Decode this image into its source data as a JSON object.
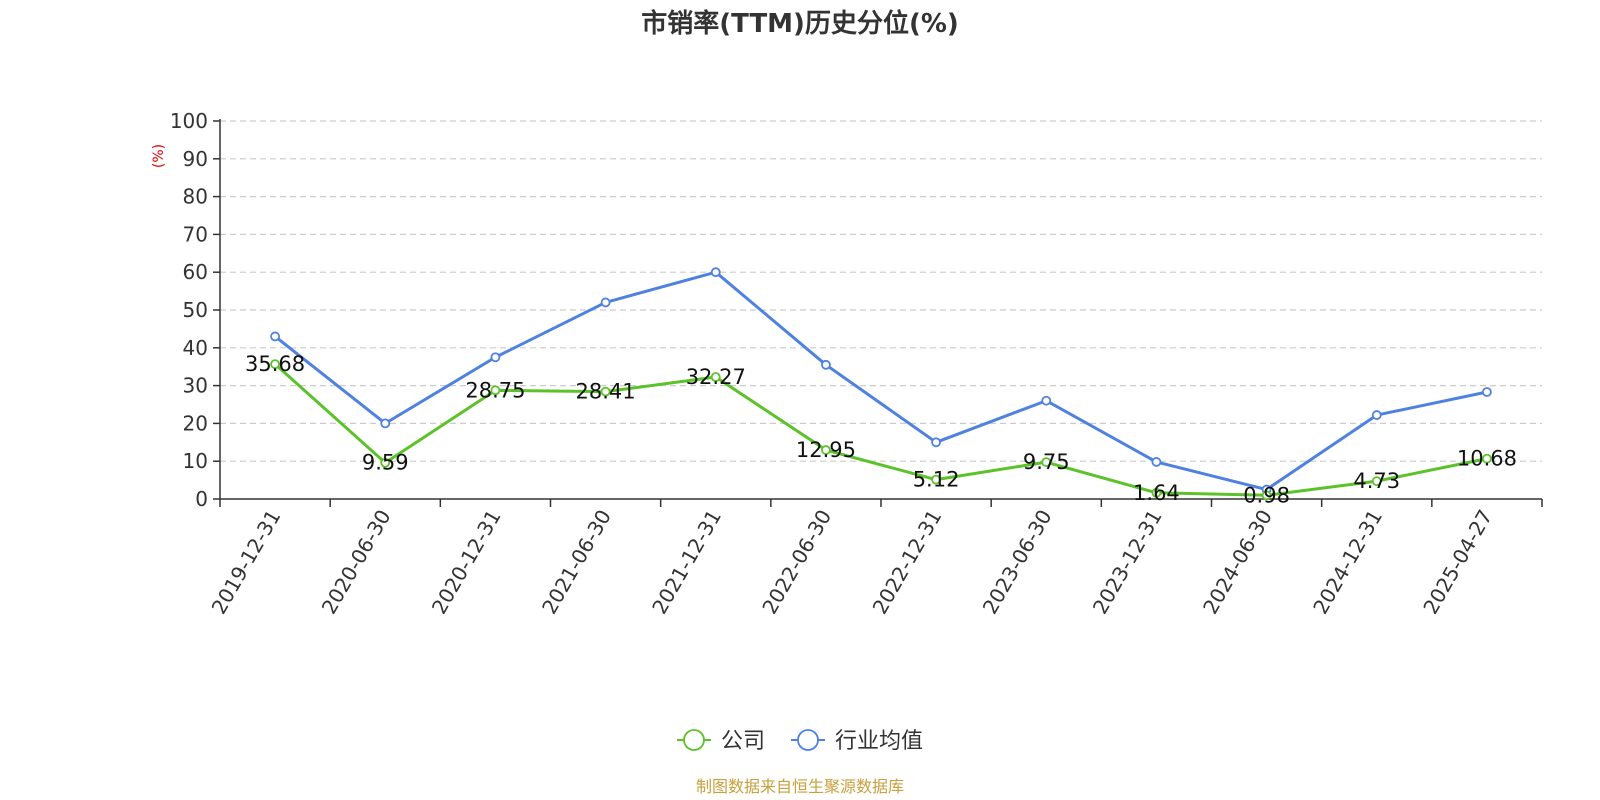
{
  "chart_data": {
    "type": "line",
    "title": "市销率(TTM)历史分位(%)",
    "ylabel": "(%)",
    "ylim": [
      0,
      100
    ],
    "yticks": [
      0,
      10,
      20,
      30,
      40,
      50,
      60,
      70,
      80,
      90,
      100
    ],
    "grid": true,
    "legend_position": "bottom-center",
    "categories": [
      "2019-12-31",
      "2020-06-30",
      "2020-12-31",
      "2021-06-30",
      "2021-12-31",
      "2022-06-30",
      "2022-12-31",
      "2023-06-30",
      "2023-12-31",
      "2024-06-30",
      "2024-12-31",
      "2025-04-27"
    ],
    "series": [
      {
        "name": "公司",
        "color": "#5cc22a",
        "show_labels": true,
        "values": [
          35.68,
          9.59,
          28.75,
          28.41,
          32.27,
          12.95,
          5.12,
          9.75,
          1.64,
          0.98,
          4.73,
          10.68
        ]
      },
      {
        "name": "行业均值",
        "color": "#4f81e0",
        "show_labels": false,
        "values": [
          43.0,
          20.0,
          37.5,
          52.0,
          60.0,
          35.5,
          15.0,
          26.0,
          9.8,
          2.5,
          22.2,
          28.3
        ]
      }
    ]
  },
  "source_text": "制图数据来自恒生聚源数据库",
  "source_color": "#c8a03c"
}
